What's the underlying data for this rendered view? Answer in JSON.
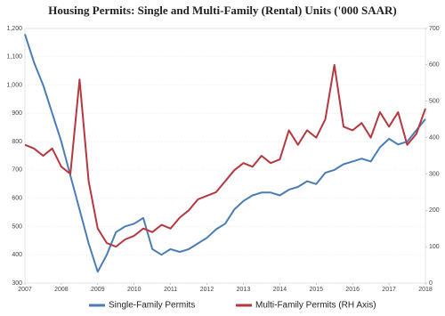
{
  "chart_data": {
    "type": "line",
    "title": "Housing Permits: Single and Multi-Family (Rental) Units ('000 SAAR)",
    "x": [
      2007,
      2007.25,
      2007.5,
      2007.75,
      2008,
      2008.25,
      2008.5,
      2008.75,
      2009,
      2009.25,
      2009.5,
      2009.75,
      2010,
      2010.25,
      2010.5,
      2010.75,
      2011,
      2011.25,
      2011.5,
      2011.75,
      2012,
      2012.25,
      2012.5,
      2012.75,
      2013,
      2013.25,
      2013.5,
      2013.75,
      2014,
      2014.25,
      2014.5,
      2014.75,
      2015,
      2015.25,
      2015.5,
      2015.75,
      2016,
      2016.25,
      2016.5,
      2016.75,
      2017,
      2017.25,
      2017.5,
      2017.75,
      2018
    ],
    "series": [
      {
        "name": "Single-Family Permits",
        "color": "#4a7db5",
        "values": [
          1180,
          1080,
          1000,
          900,
          800,
          680,
          560,
          440,
          340,
          400,
          480,
          500,
          510,
          530,
          420,
          400,
          420,
          410,
          420,
          440,
          460,
          490,
          510,
          560,
          590,
          610,
          620,
          620,
          610,
          630,
          640,
          660,
          650,
          690,
          700,
          720,
          730,
          740,
          730,
          780,
          810,
          790,
          800,
          840,
          880
        ]
      },
      {
        "name": "Multi-Family Permits (RH Axis)",
        "color": "#b5383f",
        "axis": "y2",
        "values": [
          380,
          370,
          350,
          370,
          320,
          300,
          560,
          280,
          150,
          110,
          100,
          120,
          130,
          150,
          140,
          160,
          150,
          180,
          200,
          230,
          240,
          250,
          280,
          310,
          330,
          320,
          350,
          330,
          340,
          420,
          380,
          420,
          400,
          450,
          600,
          430,
          420,
          440,
          400,
          470,
          430,
          470,
          380,
          410,
          480
        ]
      }
    ],
    "xlim": [
      2007,
      2018
    ],
    "xticks": [
      2007,
      2008,
      2009,
      2010,
      2011,
      2012,
      2013,
      2014,
      2015,
      2016,
      2017,
      2018
    ],
    "ylim": [
      300,
      1200
    ],
    "yticks": [
      300,
      400,
      500,
      600,
      700,
      800,
      900,
      {
        "value": 1000,
        "label": "1,000"
      },
      {
        "value": 1100,
        "label": "1,100"
      },
      {
        "value": 1200,
        "label": "1,200"
      }
    ],
    "y2lim": [
      0,
      700
    ],
    "y2ticks": [
      0,
      100,
      200,
      300,
      400,
      500,
      600,
      700
    ],
    "grid": true
  }
}
